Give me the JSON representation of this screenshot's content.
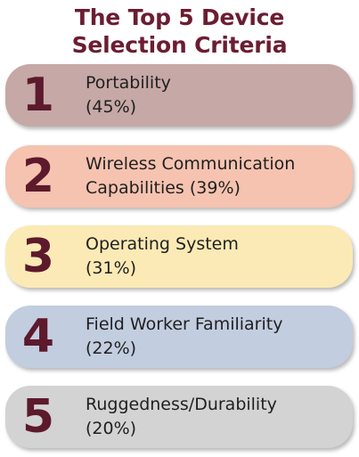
{
  "title": {
    "line1": "The Top 5 Device",
    "line2": "Selection Criteria"
  },
  "colors": {
    "title": "#6b1d32",
    "number": "#5c1a2c"
  },
  "items": [
    {
      "number": "1",
      "line1": "Portability",
      "line2": "(45%)",
      "percent": 45,
      "color": "#c6a8a6"
    },
    {
      "number": "2",
      "line1": "Wireless Communication",
      "line2": "Capabilities (39%)",
      "percent": 39,
      "color": "#f5c3b0"
    },
    {
      "number": "3",
      "line1": "Operating System",
      "line2": "(31%)",
      "percent": 31,
      "color": "#fbeab5"
    },
    {
      "number": "4",
      "line1": "Field Worker Familiarity",
      "line2": "(22%)",
      "percent": 22,
      "color": "#c3cde0"
    },
    {
      "number": "5",
      "line1": "Ruggedness/Durability",
      "line2": "(20%)",
      "percent": 20,
      "color": "#d3d3d3"
    }
  ]
}
